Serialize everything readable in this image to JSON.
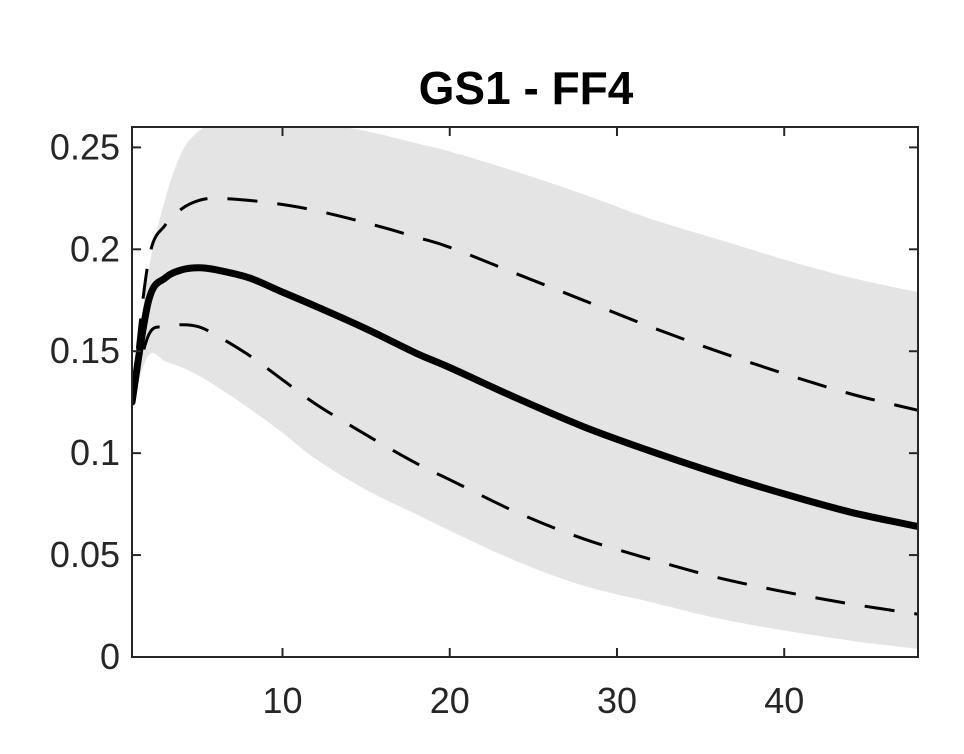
{
  "chart_data": {
    "type": "line",
    "title": "GS1 - FF4",
    "xlabel": "",
    "ylabel": "",
    "xlim": [
      1,
      48
    ],
    "ylim": [
      0,
      0.26
    ],
    "xticks": [
      10,
      20,
      30,
      40
    ],
    "xtick_labels": [
      "10",
      "20",
      "30",
      "40"
    ],
    "yticks": [
      0,
      0.05,
      0.1,
      0.15,
      0.2,
      0.25
    ],
    "ytick_labels": [
      "0",
      "0.05",
      "0.1",
      "0.15",
      "0.2",
      "0.25"
    ],
    "grid": false,
    "legend": "none",
    "x": [
      1,
      2,
      3,
      4,
      5,
      6,
      8,
      10,
      12,
      15,
      18,
      20,
      24,
      28,
      32,
      36,
      40,
      44,
      48
    ],
    "band": {
      "lower": [
        0.125,
        0.148,
        0.145,
        0.142,
        0.138,
        0.133,
        0.122,
        0.11,
        0.097,
        0.082,
        0.07,
        0.062,
        0.047,
        0.035,
        0.027,
        0.019,
        0.013,
        0.008,
        0.004
      ],
      "upper": [
        0.13,
        0.19,
        0.225,
        0.248,
        0.258,
        0.262,
        0.263,
        0.263,
        0.262,
        0.258,
        0.252,
        0.248,
        0.238,
        0.227,
        0.215,
        0.205,
        0.195,
        0.186,
        0.179
      ],
      "color": "#e4e4e4"
    },
    "series": [
      {
        "style": "solid",
        "color": "#000000",
        "values": [
          0.125,
          0.175,
          0.186,
          0.19,
          0.191,
          0.19,
          0.186,
          0.179,
          0.172,
          0.161,
          0.149,
          0.142,
          0.127,
          0.113,
          0.101,
          0.09,
          0.08,
          0.071,
          0.064
        ]
      },
      {
        "style": "dashed",
        "color": "#000000",
        "values": [
          0.127,
          0.195,
          0.212,
          0.22,
          0.224,
          0.225,
          0.224,
          0.222,
          0.219,
          0.213,
          0.206,
          0.201,
          0.188,
          0.175,
          0.162,
          0.15,
          0.139,
          0.129,
          0.121
        ]
      },
      {
        "style": "dashed",
        "color": "#000000",
        "values": [
          0.127,
          0.158,
          0.162,
          0.163,
          0.162,
          0.158,
          0.148,
          0.136,
          0.124,
          0.109,
          0.095,
          0.087,
          0.071,
          0.058,
          0.048,
          0.039,
          0.032,
          0.026,
          0.021
        ]
      }
    ]
  }
}
